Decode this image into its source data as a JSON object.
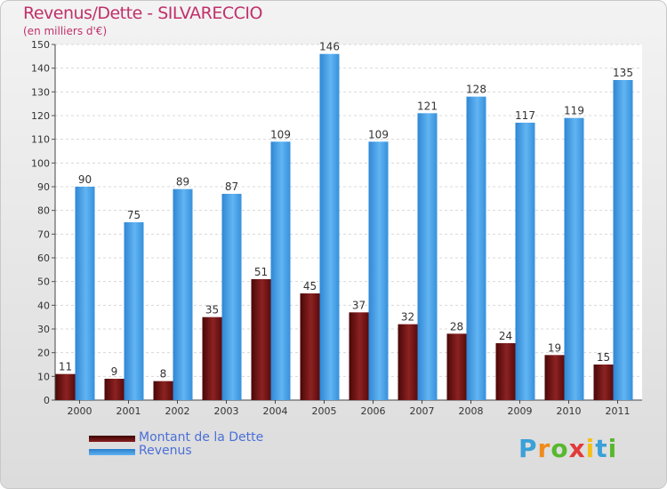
{
  "title": "Revenus/Dette - SILVARECCIO",
  "subtitle": "(en milliers d'€)",
  "logo": {
    "text": "Proxiti",
    "letters": [
      "P",
      "r",
      "o",
      "x",
      "i",
      "t",
      "i"
    ],
    "colors": [
      "#3aa0d8",
      "#f08a1c",
      "#58b82e",
      "#e23a3a",
      "#f2c019",
      "#3aa0d8",
      "#58b82e"
    ]
  },
  "legend": [
    {
      "label": "Montant de la Dette",
      "color": "#6b0f0f"
    },
    {
      "label": "Revenus",
      "color": "#3d97df"
    }
  ],
  "chart_data": {
    "type": "bar",
    "categories": [
      "2000",
      "2001",
      "2002",
      "2003",
      "2004",
      "2005",
      "2006",
      "2007",
      "2008",
      "2009",
      "2010",
      "2011"
    ],
    "series": [
      {
        "name": "Montant de la Dette",
        "values": [
          11,
          9,
          8,
          35,
          51,
          45,
          37,
          32,
          28,
          24,
          19,
          15
        ],
        "color": "#7a1717"
      },
      {
        "name": "Revenus",
        "values": [
          90,
          75,
          89,
          87,
          109,
          146,
          109,
          121,
          128,
          117,
          119,
          135
        ],
        "color": "#3d97df"
      }
    ],
    "yticks": [
      0,
      10,
      20,
      30,
      40,
      50,
      60,
      70,
      80,
      90,
      100,
      110,
      120,
      130,
      140,
      150
    ],
    "ylim": [
      0,
      150
    ],
    "grid": true,
    "legend_position": "bottom-left"
  }
}
